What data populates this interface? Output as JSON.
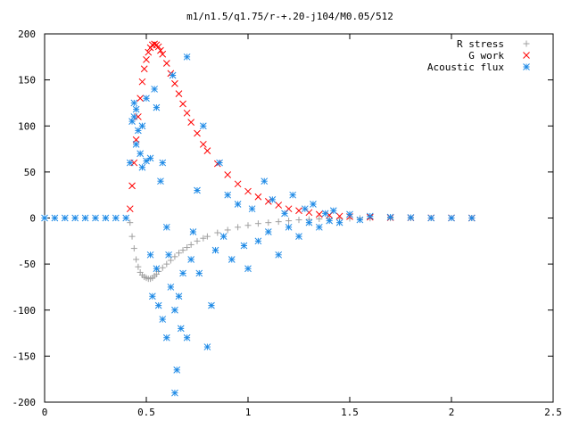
{
  "chart_data": {
    "type": "scatter",
    "title": "m1/n1.5/q1.75/r-+.20-j104/M0.05/512",
    "xlabel": "",
    "ylabel": "",
    "xlim": [
      0,
      2.5
    ],
    "ylim": [
      -200,
      200
    ],
    "x_ticks": [
      0,
      0.5,
      1,
      1.5,
      2,
      2.5
    ],
    "x_tick_labels": [
      "0",
      "0.5",
      "1",
      "1.5",
      "2",
      "2.5"
    ],
    "y_ticks": [
      -200,
      -150,
      -100,
      -50,
      0,
      50,
      100,
      150,
      200
    ],
    "y_tick_labels": [
      "-200",
      "-150",
      "-100",
      "-50",
      "0",
      "50",
      "100",
      "150",
      "200"
    ],
    "grid": false,
    "legend_position": "top-right",
    "series": [
      {
        "name": "R stress",
        "marker": "plus",
        "color": "#a0a0a0",
        "x": [
          0.42,
          0.43,
          0.44,
          0.45,
          0.46,
          0.47,
          0.48,
          0.49,
          0.5,
          0.51,
          0.52,
          0.53,
          0.54,
          0.55,
          0.56,
          0.58,
          0.6,
          0.62,
          0.64,
          0.66,
          0.68,
          0.7,
          0.72,
          0.75,
          0.78,
          0.8,
          0.85,
          0.9,
          0.95,
          1.0,
          1.05,
          1.1,
          1.15,
          1.2,
          1.25,
          1.3,
          1.35,
          1.4,
          1.45,
          1.5,
          1.55,
          1.6,
          1.7,
          1.8,
          1.9,
          2.0,
          2.1
        ],
        "y": [
          -5,
          -20,
          -33,
          -45,
          -53,
          -59,
          -62,
          -64,
          -65,
          -66,
          -66,
          -65,
          -63,
          -61,
          -58,
          -54,
          -50,
          -46,
          -42,
          -38,
          -35,
          -32,
          -29,
          -25,
          -22,
          -20,
          -16,
          -13,
          -10,
          -8,
          -6,
          -5,
          -4,
          -3,
          -2,
          -1.5,
          -1,
          -1,
          -0.5,
          -0.5,
          -0.3,
          -0.2,
          -0.1,
          0,
          0,
          0,
          0
        ]
      },
      {
        "name": "G work",
        "marker": "cross",
        "color": "#ff0000",
        "x": [
          0.42,
          0.43,
          0.44,
          0.45,
          0.46,
          0.47,
          0.48,
          0.49,
          0.5,
          0.51,
          0.52,
          0.53,
          0.54,
          0.55,
          0.56,
          0.57,
          0.58,
          0.6,
          0.62,
          0.64,
          0.66,
          0.68,
          0.7,
          0.72,
          0.75,
          0.78,
          0.8,
          0.85,
          0.9,
          0.95,
          1.0,
          1.05,
          1.1,
          1.15,
          1.2,
          1.25,
          1.3,
          1.35,
          1.4,
          1.45,
          1.5,
          1.6,
          1.7,
          1.8,
          1.9,
          2.0,
          2.1
        ],
        "y": [
          10,
          35,
          60,
          85,
          110,
          130,
          148,
          162,
          172,
          180,
          185,
          188,
          189,
          188,
          186,
          182,
          178,
          168,
          157,
          146,
          135,
          124,
          114,
          104,
          92,
          80,
          73,
          59,
          47,
          37,
          29,
          23,
          18,
          14,
          10,
          8,
          6,
          4,
          3,
          2,
          1.5,
          1,
          0.5,
          0.3,
          0.2,
          0.1,
          0
        ]
      },
      {
        "name": "Acoustic flux",
        "marker": "star",
        "color": "#1e8ae6",
        "x": [
          0.0,
          0.05,
          0.1,
          0.15,
          0.2,
          0.25,
          0.3,
          0.35,
          0.4,
          0.42,
          0.43,
          0.44,
          0.44,
          0.45,
          0.45,
          0.46,
          0.47,
          0.48,
          0.48,
          0.5,
          0.5,
          0.52,
          0.52,
          0.53,
          0.54,
          0.55,
          0.55,
          0.56,
          0.57,
          0.58,
          0.58,
          0.6,
          0.6,
          0.61,
          0.62,
          0.63,
          0.64,
          0.64,
          0.65,
          0.66,
          0.67,
          0.68,
          0.7,
          0.7,
          0.72,
          0.73,
          0.75,
          0.76,
          0.78,
          0.8,
          0.82,
          0.84,
          0.86,
          0.88,
          0.9,
          0.92,
          0.95,
          0.98,
          1.0,
          1.02,
          1.05,
          1.08,
          1.1,
          1.12,
          1.15,
          1.18,
          1.2,
          1.22,
          1.25,
          1.28,
          1.3,
          1.32,
          1.35,
          1.38,
          1.4,
          1.42,
          1.45,
          1.5,
          1.55,
          1.6,
          1.7,
          1.8,
          1.9,
          2.0,
          2.1
        ],
        "y": [
          0,
          0,
          0,
          0,
          0,
          0,
          0,
          0,
          0,
          60,
          105,
          125,
          110,
          118,
          80,
          95,
          70,
          55,
          100,
          130,
          62,
          -40,
          65,
          -85,
          140,
          120,
          -55,
          -95,
          40,
          60,
          -110,
          -130,
          -10,
          -40,
          -75,
          155,
          -100,
          -190,
          -165,
          -85,
          -120,
          -60,
          175,
          -130,
          -45,
          -15,
          30,
          -60,
          100,
          -140,
          -95,
          -35,
          60,
          -20,
          25,
          -45,
          15,
          -30,
          -55,
          10,
          -25,
          40,
          -15,
          20,
          -40,
          5,
          -10,
          25,
          -20,
          10,
          -5,
          15,
          -10,
          5,
          -3,
          8,
          -5,
          4,
          -2,
          2,
          1,
          0.5,
          0,
          0,
          0
        ]
      }
    ]
  }
}
